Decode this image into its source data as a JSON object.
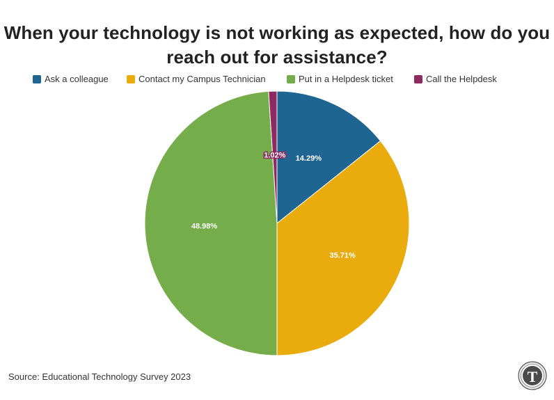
{
  "chart_data": {
    "type": "pie",
    "title_lines": [
      "When your technology is not working as expected, how do you",
      "reach out for assistance?"
    ],
    "categories": [
      "Ask a colleague",
      "Contact my Campus Technician",
      "Put in a Helpdesk ticket",
      "Call the Helpdesk"
    ],
    "values": [
      14.29,
      35.71,
      48.98,
      1.02
    ],
    "labels": [
      "14.29%",
      "35.71%",
      "48.98%",
      "1.02%"
    ],
    "colors": [
      "#1f6591",
      "#eaab0c",
      "#74ad4a",
      "#8e2a62"
    ],
    "legend_position": "top",
    "start": "12 o'clock, clockwise"
  },
  "footer": {
    "source": "Source: Educational Technology Survey 2023",
    "logo_icon": "school-seal-icon",
    "logo_letter": "T"
  }
}
